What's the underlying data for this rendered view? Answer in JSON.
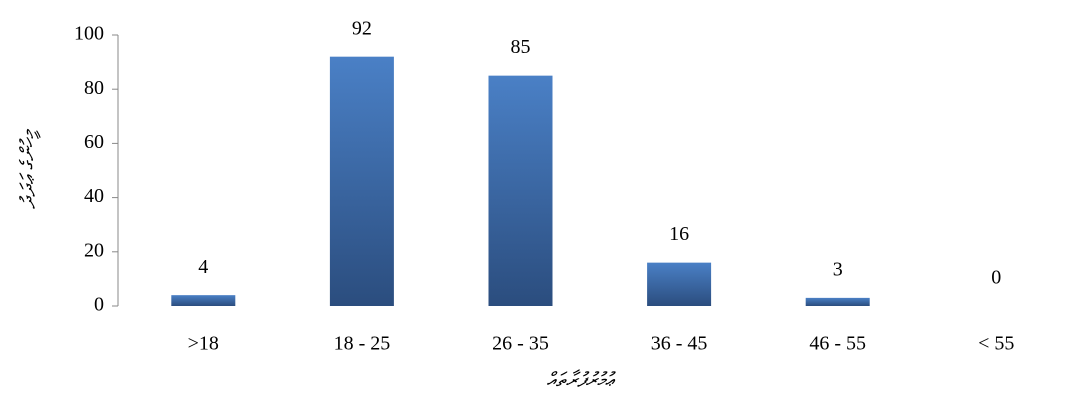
{
  "chart_data": {
    "type": "bar",
    "categories": [
      ">18",
      "18 - 25",
      "26 - 35",
      "36 - 45",
      "46 - 55",
      "< 55"
    ],
    "values": [
      4,
      92,
      85,
      16,
      3,
      0
    ],
    "color": "#4a7fc4",
    "ylim": [
      0,
      100
    ],
    "yticks": [
      0,
      20,
      40,
      60,
      80,
      100
    ],
    "grid": false,
    "xlabel": "ޢުމުރުފުރާތައް",
    "ylabel": "މީހުންގެ ޢަދަދު"
  }
}
